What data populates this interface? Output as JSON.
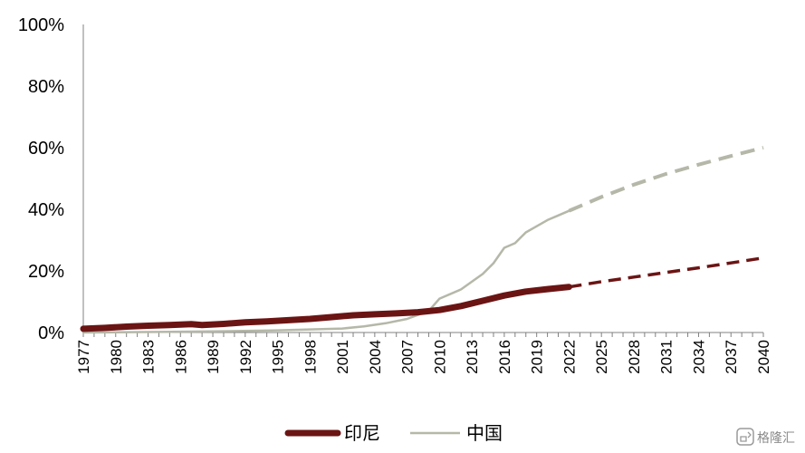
{
  "chart_data": {
    "type": "line",
    "title": "",
    "xlabel": "",
    "ylabel": "",
    "xlim": [
      1977,
      2040
    ],
    "ylim": [
      0,
      100
    ],
    "y_unit": "%",
    "y_ticks": [
      "0%",
      "20%",
      "40%",
      "60%",
      "80%",
      "100%"
    ],
    "x_ticks": [
      "1977",
      "1980",
      "1983",
      "1986",
      "1989",
      "1992",
      "1995",
      "1998",
      "2001",
      "2004",
      "2007",
      "2010",
      "2013",
      "2016",
      "2019",
      "2022",
      "2025",
      "2028",
      "2031",
      "2034",
      "2037",
      "2040"
    ],
    "grid": false,
    "legend_position": "bottom",
    "series": [
      {
        "name": "印尼",
        "color": "#6b1414",
        "style": "thick",
        "actual": {
          "x": [
            1977,
            1979,
            1981,
            1983,
            1985,
            1987,
            1988,
            1990,
            1992,
            1994,
            1996,
            1998,
            2000,
            2002,
            2004,
            2006,
            2008,
            2010,
            2012,
            2014,
            2016,
            2018,
            2020,
            2022
          ],
          "y": [
            1.2,
            1.5,
            1.9,
            2.2,
            2.4,
            2.7,
            2.4,
            2.8,
            3.3,
            3.6,
            4.0,
            4.4,
            5.0,
            5.6,
            5.9,
            6.2,
            6.6,
            7.3,
            8.6,
            10.3,
            12.0,
            13.3,
            14.1,
            14.8
          ]
        },
        "forecast": {
          "x": [
            2022,
            2025,
            2028,
            2031,
            2034,
            2037,
            2040
          ],
          "y": [
            14.8,
            16.5,
            18.0,
            19.5,
            21.0,
            22.6,
            24.2
          ]
        }
      },
      {
        "name": "中国",
        "color": "#b5b7a8",
        "style": "thin",
        "actual": {
          "x": [
            1977,
            1985,
            1990,
            1995,
            1998,
            2001,
            2003,
            2005,
            2007,
            2009,
            2010,
            2012,
            2013,
            2014,
            2015,
            2016,
            2017,
            2018,
            2019,
            2020,
            2021,
            2022
          ],
          "y": [
            0.0,
            0.2,
            0.4,
            0.7,
            1.0,
            1.3,
            2.0,
            3.0,
            4.4,
            7.0,
            11.0,
            14.0,
            16.5,
            19.0,
            22.5,
            27.5,
            29.0,
            32.5,
            34.5,
            36.5,
            38.0,
            39.5
          ]
        },
        "forecast": {
          "x": [
            2022,
            2025,
            2028,
            2031,
            2034,
            2037,
            2040
          ],
          "y": [
            39.5,
            44.0,
            48.0,
            51.5,
            54.5,
            57.3,
            60.0
          ]
        }
      }
    ]
  },
  "legend": {
    "items": [
      {
        "label": "印尼",
        "color": "#6b1414"
      },
      {
        "label": "中国",
        "color": "#b5b7a8"
      }
    ]
  },
  "watermark": {
    "text": "格隆汇",
    "icon": "gelonghui-logo-icon"
  }
}
